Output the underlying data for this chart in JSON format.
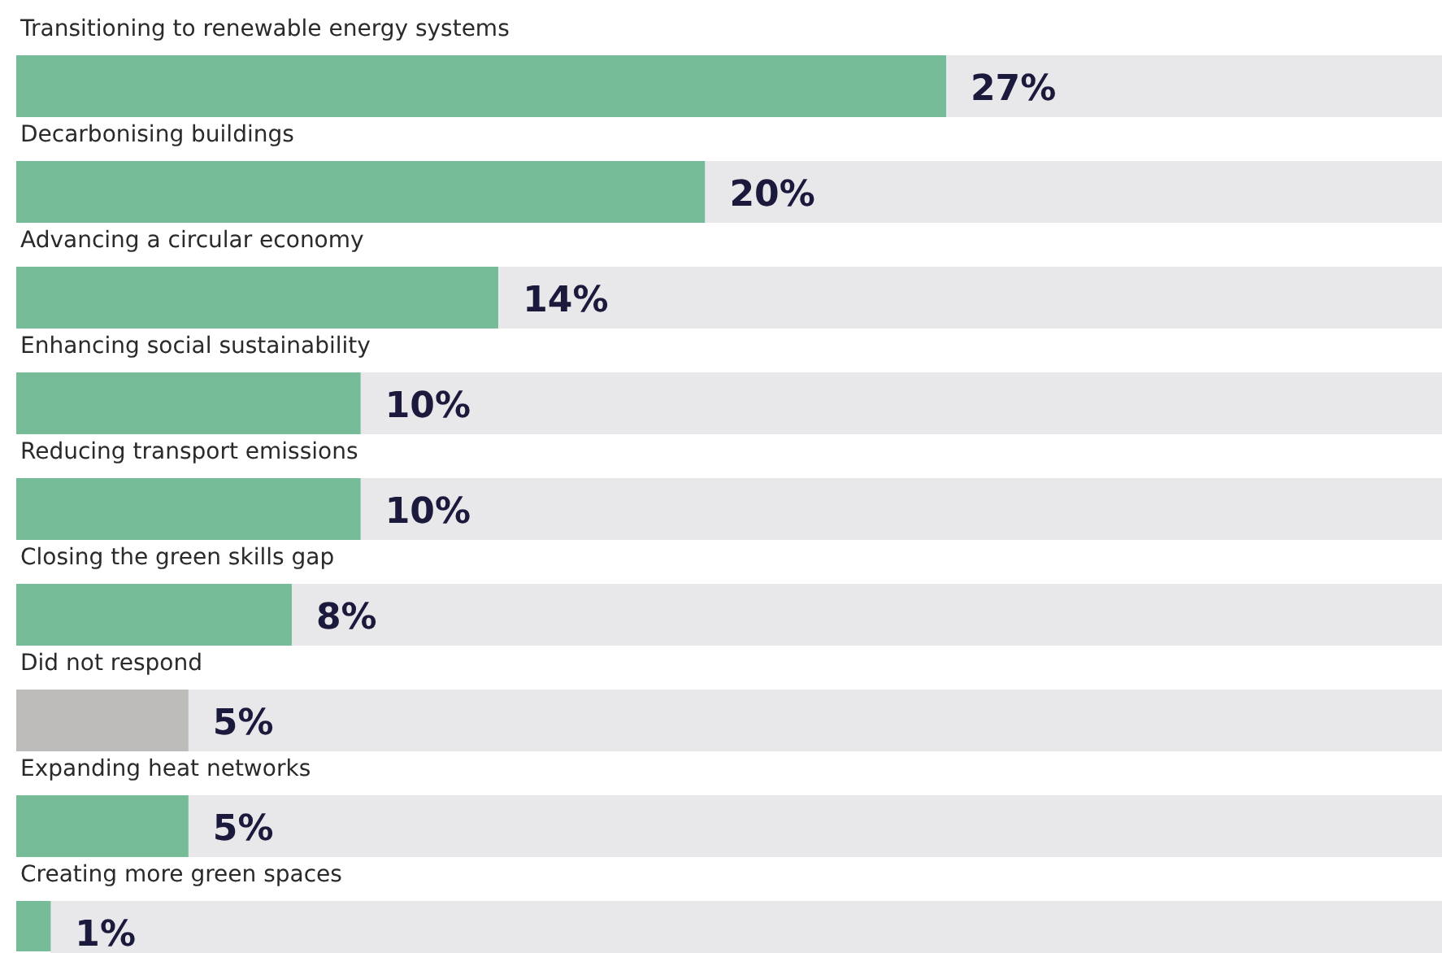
{
  "chart_data": {
    "type": "bar",
    "orientation": "horizontal",
    "categories": [
      "Transitioning to renewable energy systems",
      "Decarbonising buildings",
      "Advancing a circular economy",
      "Enhancing social sustainability",
      "Reducing transport emissions",
      "Closing the green skills gap",
      "Did not respond",
      "Expanding heat networks",
      "Creating more green spaces"
    ],
    "values": [
      27,
      20,
      14,
      10,
      10,
      8,
      5,
      5,
      1
    ],
    "colors": [
      "#77bc98",
      "#77bc98",
      "#77bc98",
      "#77bc98",
      "#77bc98",
      "#77bc98",
      "#bdbcbb",
      "#77bc98",
      "#77bc98"
    ],
    "value_labels": [
      "27%",
      "20%",
      "14%",
      "10%",
      "10%",
      "8%",
      "5%",
      "5%",
      "1%"
    ]
  }
}
